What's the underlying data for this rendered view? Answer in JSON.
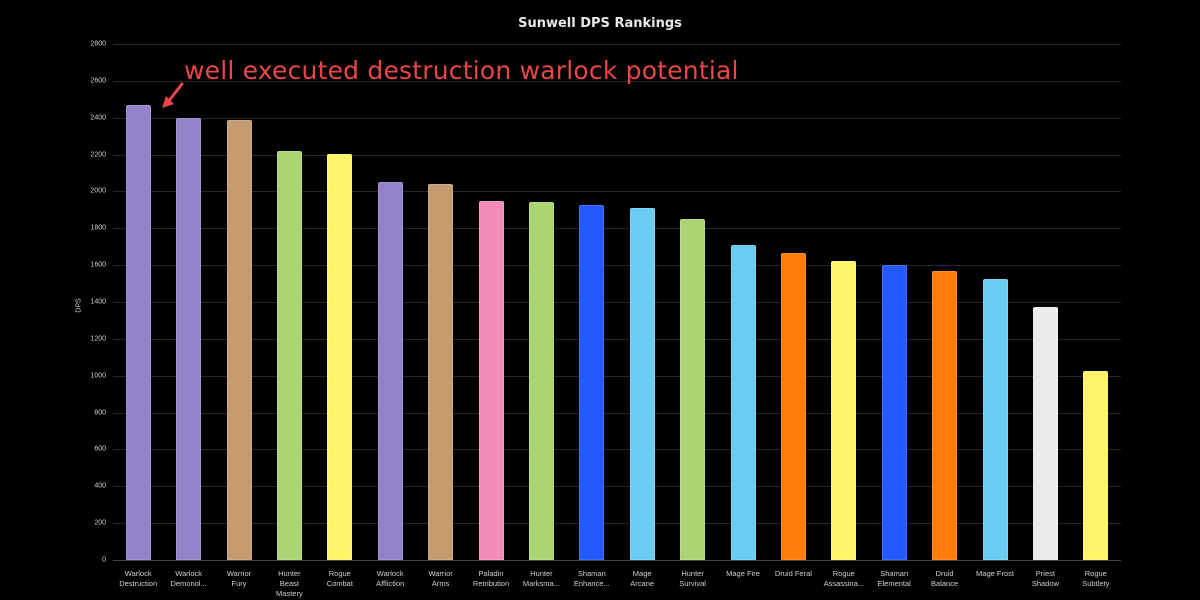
{
  "chart_data": {
    "type": "bar",
    "title": "Sunwell DPS Rankings",
    "xlabel": "",
    "ylabel": "DPS",
    "ylim": [
      0,
      2800
    ],
    "yticks": [
      0,
      200,
      400,
      600,
      800,
      1000,
      1200,
      1400,
      1600,
      1800,
      2000,
      2200,
      2400,
      2600,
      2800
    ],
    "grid": true,
    "legend": null,
    "categories": [
      "Warlock Destruction",
      "Warlock Demonol...",
      "Warrior Fury",
      "Hunter Beast Mastery",
      "Rogue Combat",
      "Warlock Affliction",
      "Warrior Arms",
      "Paladin Retribution",
      "Hunter Marksma...",
      "Shaman Enhance...",
      "Mage Arcane",
      "Hunter Survival",
      "Mage Fire",
      "Druid Feral",
      "Rogue Assassina...",
      "Shaman Elemental",
      "Druid Balance",
      "Mage Frost",
      "Priest Shadow",
      "Rogue Subtlety"
    ],
    "category_lines": [
      [
        "Warlock",
        "Destruction"
      ],
      [
        "Warlock",
        "Demonol..."
      ],
      [
        "Warrior",
        "Fury"
      ],
      [
        "Hunter",
        "Beast",
        "Mastery"
      ],
      [
        "Rogue",
        "Combat"
      ],
      [
        "Warlock",
        "Affliction"
      ],
      [
        "Warrior",
        "Arms"
      ],
      [
        "Paladin",
        "Retribution"
      ],
      [
        "Hunter",
        "Marksma..."
      ],
      [
        "Shaman",
        "Enhance..."
      ],
      [
        "Mage",
        "Arcane"
      ],
      [
        "Hunter",
        "Survival"
      ],
      [
        "Mage Fire"
      ],
      [
        "Druid Feral"
      ],
      [
        "Rogue",
        "Assassina..."
      ],
      [
        "Shaman",
        "Elemental"
      ],
      [
        "Druid",
        "Balance"
      ],
      [
        "Mage Frost"
      ],
      [
        "Priest",
        "Shadow"
      ],
      [
        "Rogue",
        "Subtlety"
      ]
    ],
    "values": [
      2469,
      2398,
      2387,
      2219,
      2203,
      2051,
      2040,
      1948,
      1942,
      1926,
      1910,
      1850,
      1709,
      1666,
      1622,
      1601,
      1568,
      1525,
      1373,
      1025
    ],
    "colors": [
      "#9482c9",
      "#9482c9",
      "#c69b6d",
      "#abd473",
      "#fff468",
      "#9482c9",
      "#c69b6d",
      "#f48cba",
      "#abd473",
      "#2459ff",
      "#69ccf0",
      "#abd473",
      "#69ccf0",
      "#ff7c0a",
      "#fff468",
      "#2459ff",
      "#ff7c0a",
      "#69ccf0",
      "#ececec",
      "#fff468"
    ]
  },
  "annotation": {
    "text": "well executed destruction warlock potential",
    "color": "#e8474a"
  }
}
